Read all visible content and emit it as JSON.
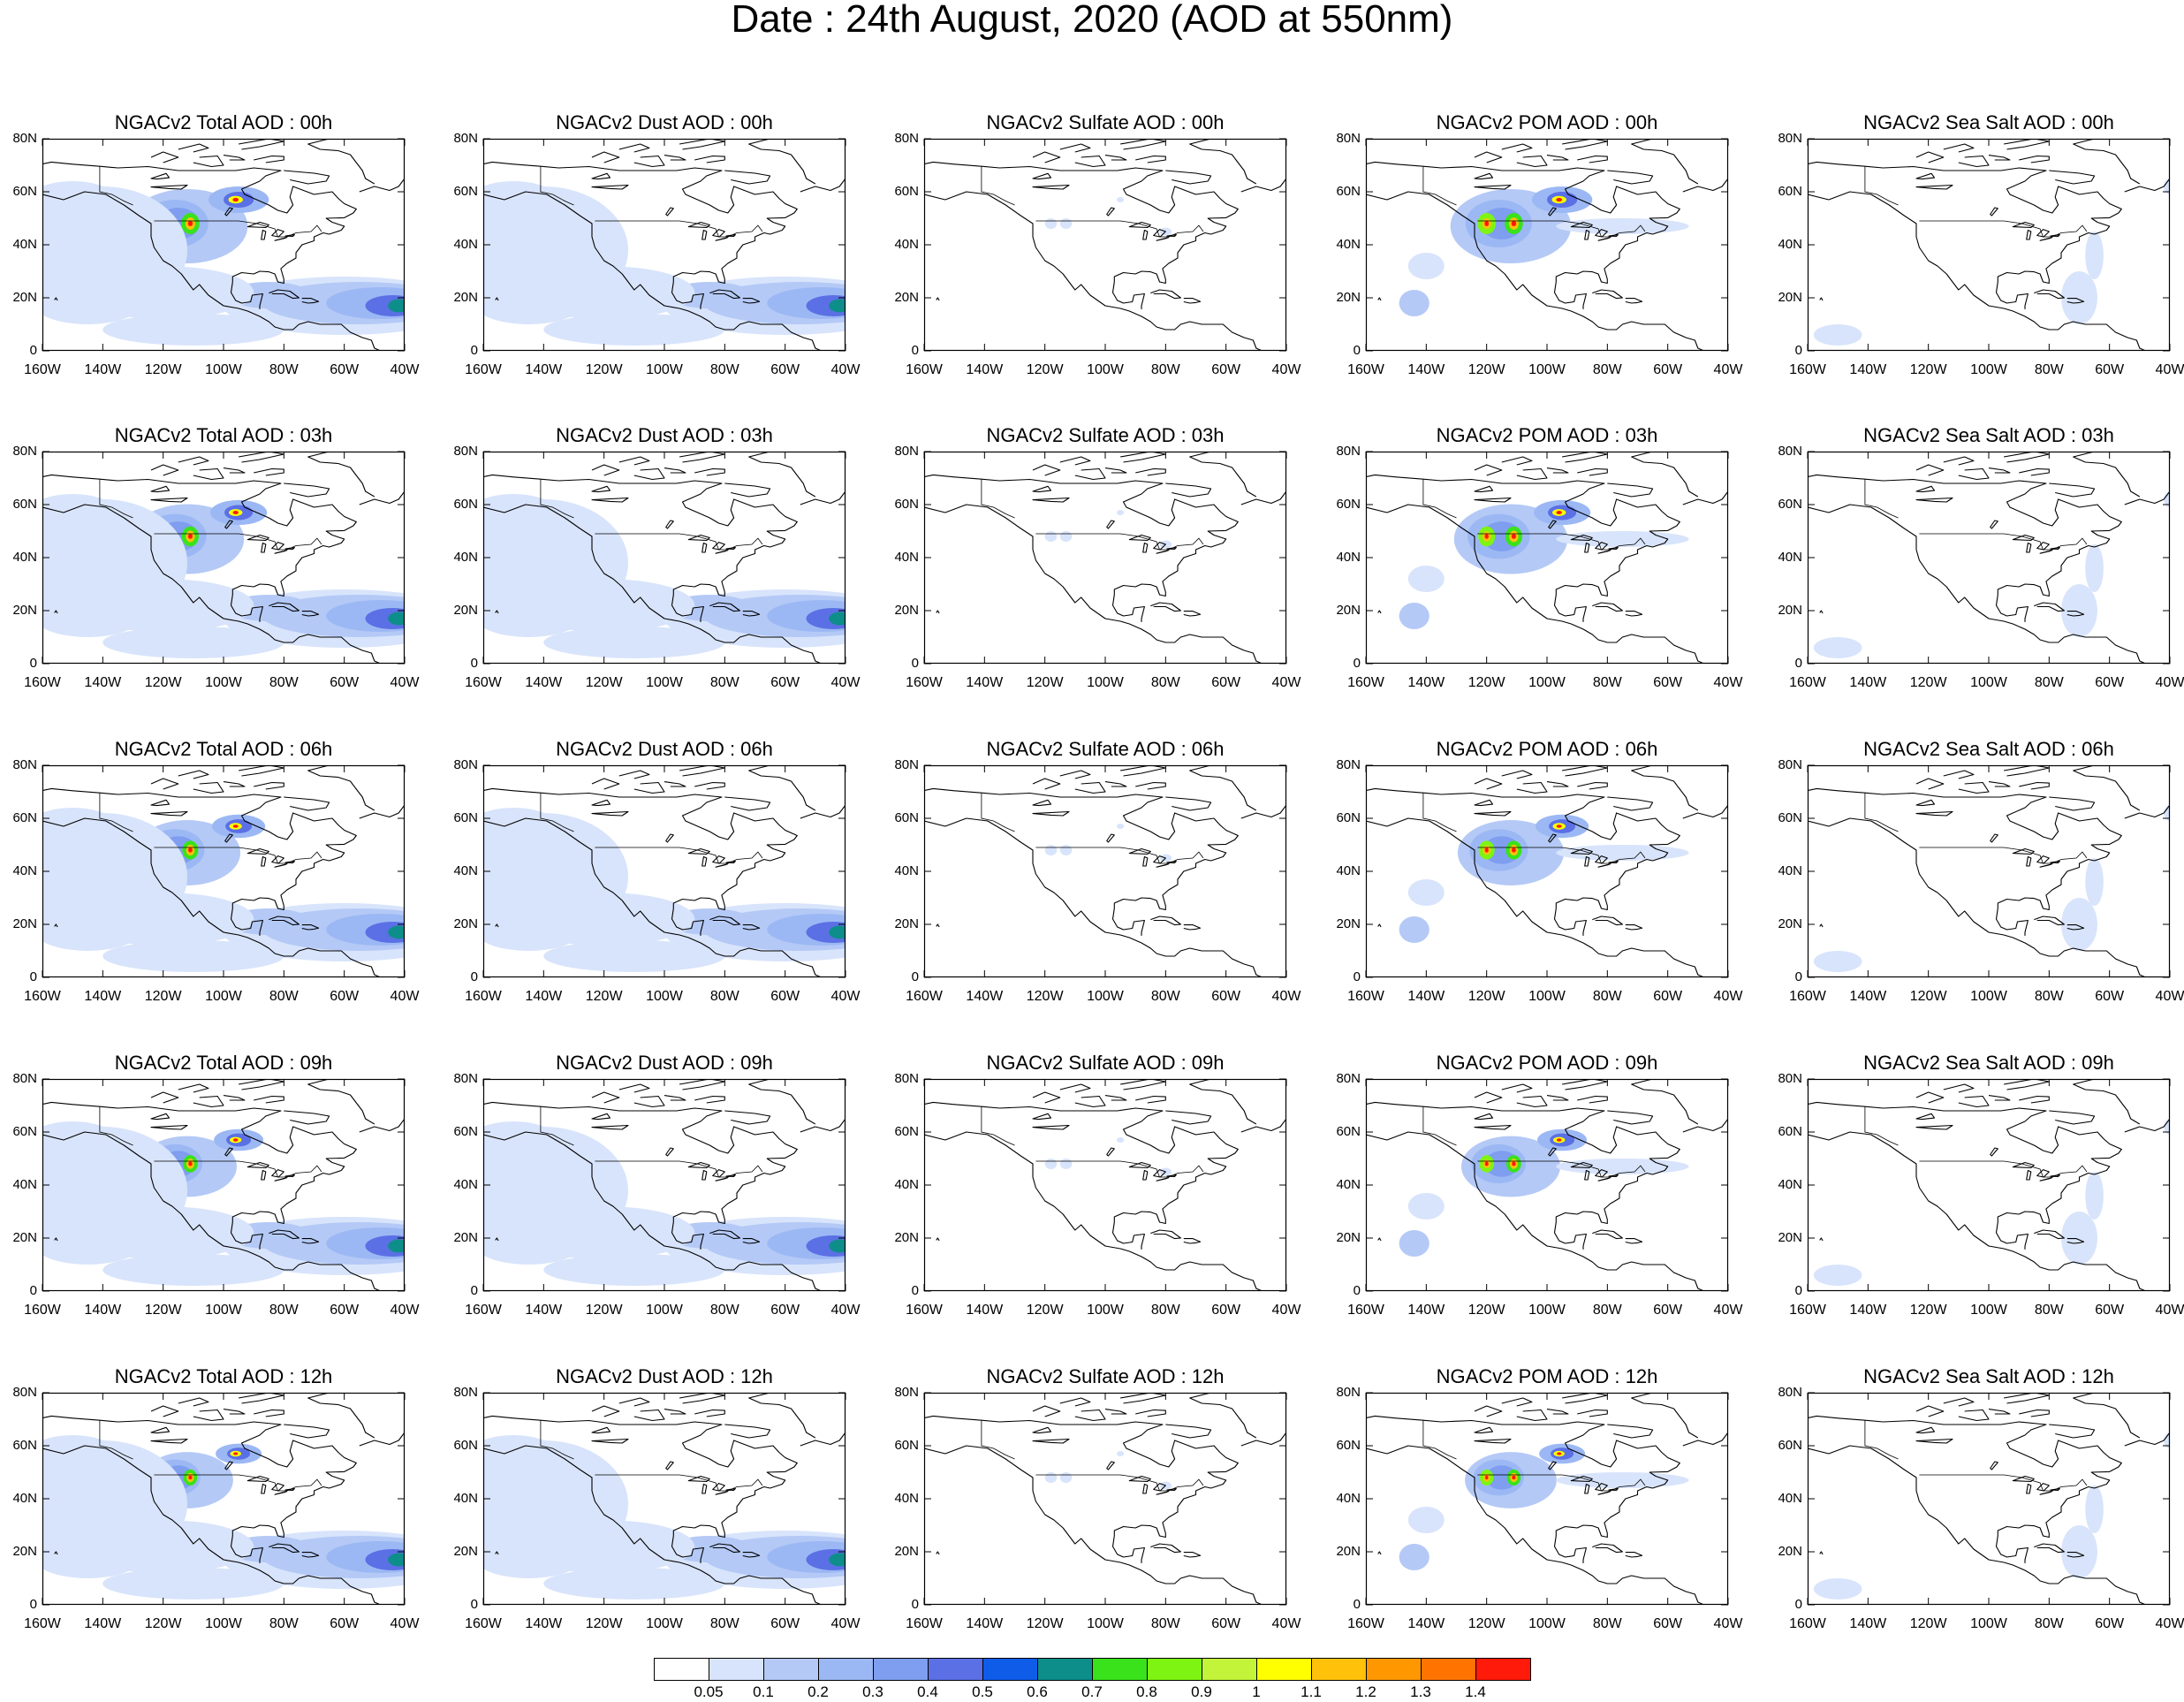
{
  "title": "Date : 24th August, 2020 (AOD at 550nm)",
  "y_ticks": [
    "80N",
    "60N",
    "40N",
    "20N",
    "0"
  ],
  "x_ticks": [
    "160W",
    "140W",
    "120W",
    "100W",
    "80W",
    "60W",
    "40W"
  ],
  "panel_titles": [
    [
      "NGACv2 Total AOD : 00h",
      "NGACv2 Dust AOD : 00h",
      "NGACv2 Sulfate AOD : 00h",
      "NGACv2 POM AOD : 00h",
      "NGACv2 Sea Salt AOD : 00h"
    ],
    [
      "NGACv2 Total AOD : 03h",
      "NGACv2 Dust AOD : 03h",
      "NGACv2 Sulfate AOD : 03h",
      "NGACv2 POM AOD : 03h",
      "NGACv2 Sea Salt AOD : 03h"
    ],
    [
      "NGACv2 Total AOD : 06h",
      "NGACv2 Dust AOD : 06h",
      "NGACv2 Sulfate AOD : 06h",
      "NGACv2 POM AOD : 06h",
      "NGACv2 Sea Salt AOD : 06h"
    ],
    [
      "NGACv2 Total AOD : 09h",
      "NGACv2 Dust AOD : 09h",
      "NGACv2 Sulfate AOD : 09h",
      "NGACv2 POM AOD : 09h",
      "NGACv2 Sea Salt  AOD : 09h"
    ],
    [
      "NGACv2 Total AOD  : 12h",
      "NGACv2 Dust AOD : 12h",
      "NGACv2 Sulfate AOD : 12h",
      "NGACv2 POM  AOD : 12h",
      "NGACv2 Sea Salt  AOD : 12h"
    ]
  ],
  "colorbar": {
    "labels": [
      "0.05",
      "0.1",
      "0.2",
      "0.3",
      "0.4",
      "0.5",
      "0.6",
      "0.7",
      "0.8",
      "0.9",
      "1",
      "1.1",
      "1.2",
      "1.3",
      "1.4"
    ],
    "colors": [
      "#ffffff",
      "#d8e4fb",
      "#b4c9f6",
      "#9cb8f4",
      "#7f9ef0",
      "#5b70e5",
      "#0f5ce8",
      "#0e8e8a",
      "#39e21a",
      "#7ef412",
      "#c3f43a",
      "#ffff00",
      "#ffc10a",
      "#ff9800",
      "#ff7400",
      "#ff1a0a"
    ]
  },
  "fields": {
    "total": {
      "color_scale": "aod",
      "plumes": [
        "west-us-fires",
        "canada-smoke",
        "saharan-dust",
        "pacific-background"
      ]
    },
    "dust": {
      "color_scale": "aod",
      "plumes": [
        "saharan-dust",
        "pacific-background"
      ]
    },
    "sulfate": {
      "color_scale": "aod",
      "plumes": [
        "west-coast-spot",
        "great-lakes-spot"
      ]
    },
    "pom": {
      "color_scale": "aod",
      "plumes": [
        "west-us-fires",
        "canada-smoke",
        "atlantic-outflow"
      ]
    },
    "seasalt": {
      "color_scale": "aod",
      "plumes": [
        "caribbean",
        "east-pacific"
      ]
    }
  },
  "field_order": [
    "total",
    "dust",
    "sulfate",
    "pom",
    "seasalt"
  ]
}
